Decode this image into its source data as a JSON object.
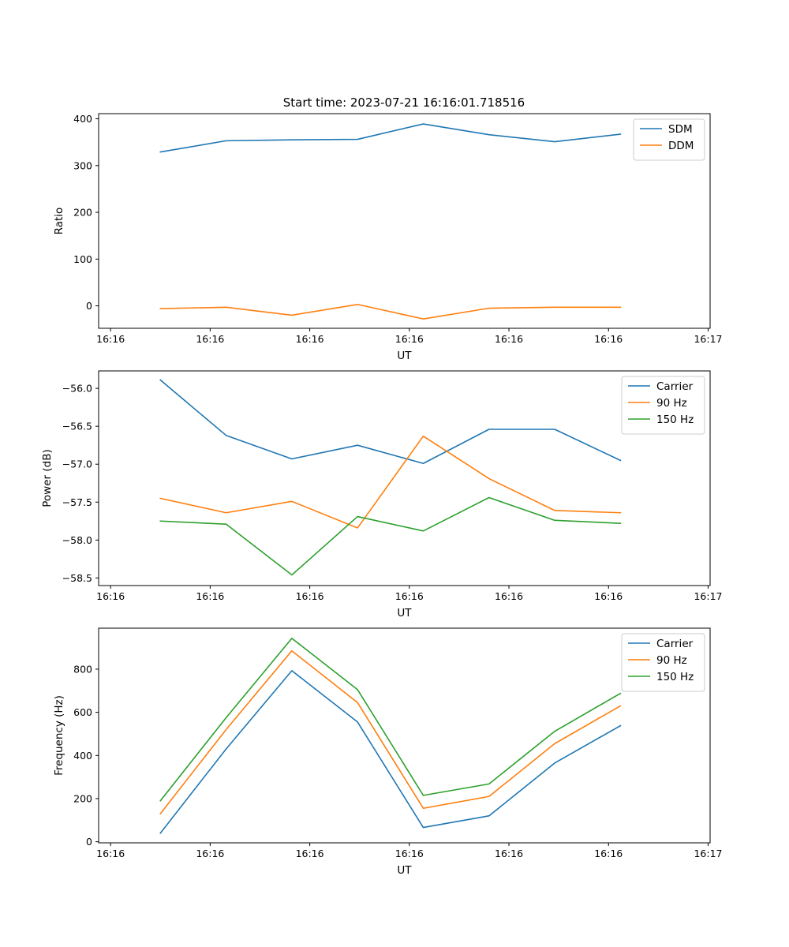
{
  "chart_data": [
    {
      "type": "line",
      "title": "Start time: 2023-07-21 16:16:01.718516",
      "xlabel": "UT",
      "ylabel": "Ratio",
      "x": [
        0.5,
        1.16,
        1.82,
        2.48,
        3.14,
        3.8,
        4.46,
        5.12
      ],
      "xlim": [
        -0.12,
        6.02
      ],
      "xticks": [
        0,
        1,
        2,
        3,
        4,
        5,
        6
      ],
      "xticklabels": [
        "16:16",
        "16:16",
        "16:16",
        "16:16",
        "16:16",
        "16:16",
        "16:17"
      ],
      "ylim": [
        -48,
        411
      ],
      "yticks": [
        0,
        100,
        200,
        300,
        400
      ],
      "yticklabels": [
        "0",
        "100",
        "200",
        "300",
        "400"
      ],
      "legend_position": "top-right",
      "grid": false,
      "series": [
        {
          "name": "SDM",
          "color": "#1f77b4",
          "values": [
            329,
            353,
            355,
            356,
            389,
            366,
            351,
            367
          ]
        },
        {
          "name": "DDM",
          "color": "#ff7f0e",
          "values": [
            -6,
            -3,
            -20,
            3,
            -28,
            -5,
            -3,
            -3
          ]
        }
      ]
    },
    {
      "type": "line",
      "title": "",
      "xlabel": "UT",
      "ylabel": "Power (dB)",
      "x": [
        0.5,
        1.16,
        1.82,
        2.48,
        3.14,
        3.8,
        4.46,
        5.12
      ],
      "xlim": [
        -0.12,
        6.02
      ],
      "xticks": [
        0,
        1,
        2,
        3,
        4,
        5,
        6
      ],
      "xticklabels": [
        "16:16",
        "16:16",
        "16:16",
        "16:16",
        "16:16",
        "16:16",
        "16:17"
      ],
      "ylim": [
        -58.6,
        -55.77
      ],
      "yticks": [
        -56.0,
        -56.5,
        -57.0,
        -57.5,
        -58.0,
        -58.5
      ],
      "yticklabels": [
        "−56.0",
        "−56.5",
        "−57.0",
        "−57.5",
        "−58.0",
        "−58.5"
      ],
      "legend_position": "top-right",
      "grid": false,
      "series": [
        {
          "name": "Carrier",
          "color": "#1f77b4",
          "values": [
            -55.89,
            -56.62,
            -56.93,
            -56.75,
            -56.99,
            -56.54,
            -56.54,
            -56.95
          ]
        },
        {
          "name": "90 Hz",
          "color": "#ff7f0e",
          "values": [
            -57.45,
            -57.64,
            -57.49,
            -57.84,
            -56.63,
            -57.19,
            -57.61,
            -57.64
          ]
        },
        {
          "name": "150 Hz",
          "color": "#2ca02c",
          "values": [
            -57.75,
            -57.79,
            -58.46,
            -57.69,
            -57.88,
            -57.44,
            -57.74,
            -57.78
          ]
        }
      ]
    },
    {
      "type": "line",
      "title": "",
      "xlabel": "UT",
      "ylabel": "Frequency (Hz)",
      "x": [
        0.5,
        1.16,
        1.82,
        2.48,
        3.14,
        3.8,
        4.46,
        5.12
      ],
      "xlim": [
        -0.12,
        6.02
      ],
      "xticks": [
        0,
        1,
        2,
        3,
        4,
        5,
        6
      ],
      "xticklabels": [
        "16:16",
        "16:16",
        "16:16",
        "16:16",
        "16:16",
        "16:16",
        "16:17"
      ],
      "ylim": [
        -5,
        990
      ],
      "yticks": [
        0,
        200,
        400,
        600,
        800
      ],
      "yticklabels": [
        "0",
        "200",
        "400",
        "600",
        "800"
      ],
      "legend_position": "top-right",
      "grid": false,
      "series": [
        {
          "name": "Carrier",
          "color": "#1f77b4",
          "values": [
            40,
            430,
            793,
            555,
            66,
            120,
            365,
            538
          ]
        },
        {
          "name": "90 Hz",
          "color": "#ff7f0e",
          "values": [
            130,
            520,
            885,
            645,
            155,
            210,
            455,
            630
          ]
        },
        {
          "name": "150 Hz",
          "color": "#2ca02c",
          "values": [
            190,
            575,
            943,
            705,
            215,
            268,
            512,
            688
          ]
        }
      ]
    }
  ]
}
